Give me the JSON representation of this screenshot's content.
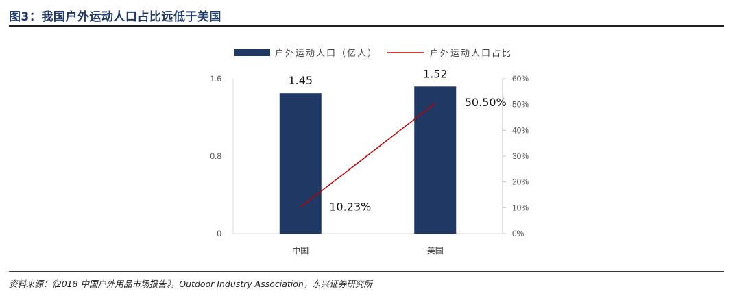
{
  "figure": {
    "title": "图3：我国户外运动人口占比远低于美国",
    "source": "资料来源：《2018 中国户外用品市场报告》，Outdoor Industry Association，东兴证券研究所"
  },
  "colors": {
    "bar": "#1f3864",
    "line": "#c00000"
  },
  "chart_data": {
    "type": "bar",
    "categories": [
      "中国",
      "美国"
    ],
    "series": [
      {
        "name": "户外运动人口（亿人）",
        "type": "bar",
        "axis": "left",
        "values": [
          1.45,
          1.52
        ],
        "labels": [
          "1.45",
          "1.52"
        ]
      },
      {
        "name": "户外运动人口占比",
        "type": "line",
        "axis": "right",
        "values": [
          10.23,
          50.5
        ],
        "labels": [
          "10.23%",
          "50.50%"
        ]
      }
    ],
    "y_left": {
      "ylim": [
        0,
        1.6
      ],
      "ticks": [
        0,
        0.8,
        1.6
      ],
      "tick_labels": [
        "0",
        "0.8",
        "1.6"
      ]
    },
    "y_right": {
      "ylim": [
        0,
        60
      ],
      "ticks": [
        0,
        10,
        20,
        30,
        40,
        50,
        60
      ],
      "tick_labels": [
        "0%",
        "10%",
        "20%",
        "30%",
        "40%",
        "50%",
        "60%"
      ]
    },
    "grid": false,
    "legend": "top-center"
  }
}
